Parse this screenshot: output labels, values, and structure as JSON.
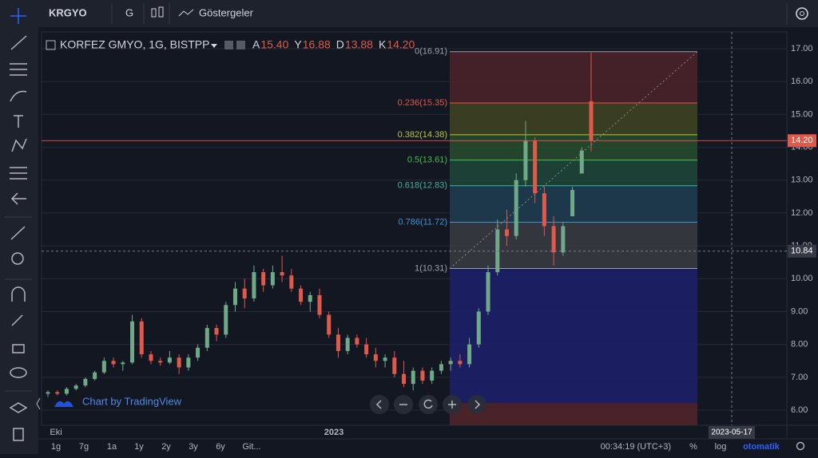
{
  "toolbar": {
    "symbol": "KRGYO",
    "interval": "G",
    "indicators": "Göstergeler"
  },
  "chart_data": {
    "type": "candlestick",
    "title": "KORFEZ GMYO, 1G, BISTPP",
    "ohlc_legend": [
      {
        "label": "A",
        "value": 15.4,
        "value_label": "15.40"
      },
      {
        "label": "Y",
        "value": 16.88,
        "value_label": "16.88"
      },
      {
        "label": "D",
        "value": 13.88,
        "value_label": "13.88"
      },
      {
        "label": "K",
        "value": 14.2,
        "value_label": "14.20"
      }
    ],
    "up_color": "#6fa987",
    "down_color": "#e0594b",
    "candles": [
      [
        6.5,
        6.6,
        6.4,
        6.55
      ],
      [
        6.55,
        6.6,
        6.45,
        6.5
      ],
      [
        6.5,
        6.7,
        6.45,
        6.65
      ],
      [
        6.65,
        6.8,
        6.6,
        6.75
      ],
      [
        6.75,
        7.0,
        6.7,
        6.95
      ],
      [
        6.95,
        7.2,
        6.9,
        7.15
      ],
      [
        7.15,
        7.6,
        7.1,
        7.5
      ],
      [
        7.5,
        7.6,
        7.3,
        7.4
      ],
      [
        7.4,
        7.5,
        7.2,
        7.45
      ],
      [
        7.45,
        8.9,
        7.4,
        8.7
      ],
      [
        8.7,
        8.8,
        7.6,
        7.7
      ],
      [
        7.7,
        7.8,
        7.4,
        7.5
      ],
      [
        7.5,
        7.6,
        7.35,
        7.45
      ],
      [
        7.45,
        7.8,
        7.4,
        7.6
      ],
      [
        7.6,
        7.7,
        7.1,
        7.3
      ],
      [
        7.3,
        7.7,
        7.2,
        7.6
      ],
      [
        7.6,
        8.0,
        7.5,
        7.9
      ],
      [
        7.9,
        8.6,
        7.8,
        8.5
      ],
      [
        8.5,
        8.6,
        8.1,
        8.3
      ],
      [
        8.3,
        9.3,
        8.2,
        9.2
      ],
      [
        9.2,
        9.9,
        9.0,
        9.7
      ],
      [
        9.7,
        10.0,
        9.1,
        9.4
      ],
      [
        9.4,
        10.4,
        9.3,
        10.2
      ],
      [
        10.2,
        10.3,
        9.6,
        9.8
      ],
      [
        9.8,
        10.4,
        9.7,
        10.2
      ],
      [
        10.2,
        10.7,
        9.9,
        10.1
      ],
      [
        10.1,
        10.3,
        9.6,
        9.7
      ],
      [
        9.7,
        9.8,
        9.2,
        9.3
      ],
      [
        9.3,
        9.6,
        9.0,
        9.5
      ],
      [
        9.5,
        9.7,
        8.8,
        8.9
      ],
      [
        8.9,
        9.0,
        8.2,
        8.3
      ],
      [
        8.3,
        8.5,
        7.6,
        7.8
      ],
      [
        7.8,
        8.3,
        7.7,
        8.2
      ],
      [
        8.2,
        8.3,
        7.9,
        8.0
      ],
      [
        8.0,
        8.2,
        7.6,
        7.7
      ],
      [
        7.7,
        7.9,
        7.3,
        7.5
      ],
      [
        7.5,
        7.7,
        7.3,
        7.6
      ],
      [
        7.6,
        7.8,
        7.0,
        7.1
      ],
      [
        7.1,
        7.5,
        6.7,
        6.8
      ],
      [
        6.8,
        7.3,
        6.6,
        7.2
      ],
      [
        7.2,
        7.3,
        6.8,
        6.9
      ],
      [
        6.9,
        7.3,
        6.8,
        7.2
      ],
      [
        7.2,
        7.5,
        7.1,
        7.4
      ],
      [
        7.4,
        7.6,
        7.2,
        7.5
      ],
      [
        7.5,
        7.7,
        7.3,
        7.4
      ],
      [
        7.4,
        8.2,
        7.3,
        8.0
      ],
      [
        8.0,
        9.1,
        7.9,
        9.0
      ],
      [
        9.0,
        10.4,
        8.9,
        10.2
      ],
      [
        10.2,
        11.8,
        10.1,
        11.5
      ],
      [
        11.5,
        12.1,
        11.0,
        11.3
      ],
      [
        11.3,
        13.2,
        11.2,
        13.0
      ],
      [
        13.0,
        14.8,
        12.8,
        14.2
      ],
      [
        14.2,
        14.3,
        12.3,
        12.6
      ],
      [
        12.6,
        12.8,
        11.3,
        11.6
      ],
      [
        11.6,
        11.9,
        10.4,
        10.8
      ],
      [
        10.8,
        11.7,
        10.7,
        11.6
      ],
      [
        11.9,
        12.8,
        11.9,
        12.7
      ],
      [
        13.2,
        14.0,
        13.2,
        13.9
      ],
      [
        15.4,
        16.88,
        13.88,
        14.2
      ]
    ],
    "ylim": [
      5.54,
      17.51
    ],
    "yticks": [
      {
        "value": 6,
        "label": "6.00"
      },
      {
        "value": 7,
        "label": "7.00"
      },
      {
        "value": 8,
        "label": "8.00"
      },
      {
        "value": 9,
        "label": "9.00"
      },
      {
        "value": 10,
        "label": "10.00"
      },
      {
        "value": 11,
        "label": "11.00"
      },
      {
        "value": 12,
        "label": "12.00"
      },
      {
        "value": 13,
        "label": "13.00"
      },
      {
        "value": 14,
        "label": "14.00"
      },
      {
        "value": 15,
        "label": "15.00"
      },
      {
        "value": 16,
        "label": "16.00"
      },
      {
        "value": 17,
        "label": "17.00"
      }
    ],
    "x_labels": [
      "Eki",
      "2023"
    ],
    "fib_levels": [
      {
        "price": 16.91,
        "label": "0(16.91)",
        "color": "#9aa0a6",
        "fill": "#4a2229"
      },
      {
        "price": 15.35,
        "label": "0.236(15.35)",
        "color": "#e0574c",
        "fill": "#3e4122"
      },
      {
        "price": 14.38,
        "label": "0.382(14.38)",
        "color": "#b7c43a",
        "fill": "#274a2d"
      },
      {
        "price": 13.61,
        "label": "0.5(13.61)",
        "color": "#4cbb52",
        "fill": "#1f4539"
      },
      {
        "price": 12.83,
        "label": "0.618(12.83)",
        "color": "#3fb39a",
        "fill": "#1e3c4f"
      },
      {
        "price": 11.72,
        "label": "0.786(11.72)",
        "color": "#3e94d6",
        "fill": "#393a41"
      },
      {
        "price": 10.31,
        "label": "1(10.31)",
        "color": "#9aa0a6",
        "fill": "#1d2069"
      }
    ],
    "last_price": {
      "value": 14.2,
      "label": "14.20"
    },
    "crosshair": {
      "price": {
        "value": 10.84,
        "label": "10.84"
      },
      "date": "2023-05-17"
    },
    "watermark": "Chart by TradingView"
  },
  "bottom_bar": {
    "ranges": [
      "1g",
      "7g",
      "1a",
      "1y",
      "2y",
      "3y",
      "6y",
      "Git..."
    ],
    "clock": "00:34:19 (UTC+3)",
    "percent": "%",
    "log": "log",
    "auto": "otomatik"
  }
}
